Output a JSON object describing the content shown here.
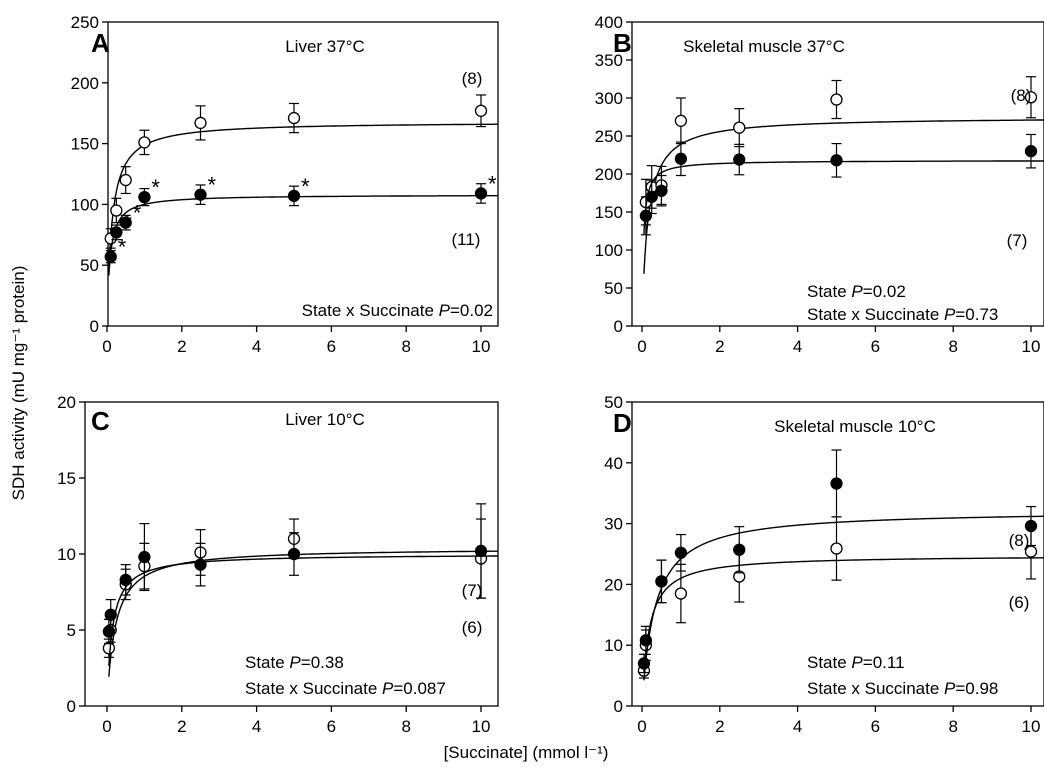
{
  "figure": {
    "ylabel": "SDH activity (mU mg⁻¹ protein)",
    "xlabel": "[Succinate] (mmol l⁻¹)"
  },
  "chart_data": [
    {
      "type": "scatter",
      "letter": "A",
      "title": "Liver 37°C",
      "xlim": [
        0,
        10
      ],
      "ylim": [
        0,
        250
      ],
      "xticks": [
        0,
        2,
        4,
        6,
        8,
        10
      ],
      "yticks": [
        0,
        50,
        100,
        150,
        200,
        250
      ],
      "series": [
        {
          "marker": "open",
          "color": "#000000",
          "x": [
            0.1,
            0.25,
            0.5,
            1,
            2.5,
            5,
            10
          ],
          "y": [
            72,
            95,
            120,
            151,
            167,
            171,
            177
          ],
          "err": [
            8,
            10,
            11,
            10,
            14,
            12,
            13
          ],
          "fit": {
            "vmax": 168,
            "km": 0.13
          },
          "n_label": "(8)"
        },
        {
          "marker": "filled",
          "color": "#000000",
          "x": [
            0.1,
            0.25,
            0.5,
            1,
            2.5,
            5,
            10
          ],
          "y": [
            57,
            77,
            85,
            106,
            108,
            107,
            109
          ],
          "err": [
            5,
            6,
            6,
            7,
            8,
            8,
            8
          ],
          "fit": {
            "vmax": 108,
            "km": 0.08
          },
          "n_label": "(11)",
          "stars": [
            "*",
            "*",
            "*",
            "*",
            "*",
            "*",
            "*"
          ]
        }
      ],
      "annotations": [
        {
          "parts": [
            "State x Succinate ",
            "P",
            "=0.02"
          ]
        }
      ]
    },
    {
      "type": "scatter",
      "letter": "B",
      "title": "Skeletal muscle 37°C",
      "xlim": [
        0,
        10
      ],
      "ylim": [
        0,
        400
      ],
      "xticks": [
        0,
        2,
        4,
        6,
        8,
        10
      ],
      "yticks": [
        0,
        50,
        100,
        150,
        200,
        250,
        300,
        350,
        400
      ],
      "series": [
        {
          "marker": "open",
          "color": "#000000",
          "x": [
            0.1,
            0.25,
            0.5,
            1,
            2.5,
            5,
            10
          ],
          "y": [
            163,
            183,
            185,
            270,
            261,
            298,
            301
          ],
          "err": [
            30,
            28,
            25,
            30,
            25,
            25,
            27
          ],
          "fit": {
            "vmax": 275,
            "km": 0.15
          },
          "n_label": "(8)"
        },
        {
          "marker": "filled",
          "color": "#000000",
          "x": [
            0.1,
            0.25,
            0.5,
            1,
            2.5,
            5,
            10
          ],
          "y": [
            145,
            170,
            178,
            220,
            219,
            218,
            230
          ],
          "err": [
            25,
            22,
            20,
            22,
            20,
            22,
            22
          ],
          "fit": {
            "vmax": 218,
            "km": 0.04
          },
          "n_label": "(7)"
        }
      ],
      "annotations": [
        {
          "parts": [
            "State ",
            "P",
            "=0.02"
          ]
        },
        {
          "parts": [
            "State x Succinate ",
            "P",
            "=0.73"
          ]
        }
      ]
    },
    {
      "type": "scatter",
      "letter": "C",
      "title": "Liver 10°C",
      "xlim": [
        0,
        10
      ],
      "ylim": [
        0,
        20
      ],
      "xticks": [
        0,
        2,
        4,
        6,
        8,
        10
      ],
      "yticks": [
        0,
        5,
        10,
        15,
        20
      ],
      "series": [
        {
          "marker": "open",
          "color": "#000000",
          "x": [
            0.05,
            0.1,
            0.5,
            1,
            2.5,
            5,
            10
          ],
          "y": [
            3.8,
            5.0,
            8.0,
            9.2,
            10.1,
            11.0,
            9.7
          ],
          "err": [
            0.6,
            0.8,
            1.0,
            1.5,
            1.5,
            1.3,
            2.6
          ],
          "fit": {
            "vmax": 10.4,
            "km": 0.22
          },
          "n_label": "(7)"
        },
        {
          "marker": "filled",
          "color": "#000000",
          "x": [
            0.05,
            0.1,
            0.5,
            1,
            2.5,
            5,
            10
          ],
          "y": [
            4.9,
            6.0,
            8.3,
            9.8,
            9.3,
            10.0,
            10.2
          ],
          "err": [
            0.8,
            1.0,
            1.0,
            2.2,
            1.4,
            1.4,
            3.1
          ],
          "fit": {
            "vmax": 10.0,
            "km": 0.14
          },
          "n_label": "(6)"
        }
      ],
      "annotations": [
        {
          "parts": [
            "State ",
            "P",
            "=0.38"
          ]
        },
        {
          "parts": [
            "State x Succinate ",
            "P",
            "=0.087"
          ]
        }
      ]
    },
    {
      "type": "scatter",
      "letter": "D",
      "title": "Skeletal muscle 10°C",
      "xlim": [
        0,
        10
      ],
      "ylim": [
        0,
        50
      ],
      "xticks": [
        0,
        2,
        4,
        6,
        8,
        10
      ],
      "yticks": [
        0,
        10,
        20,
        30,
        40,
        50
      ],
      "series": [
        {
          "marker": "open",
          "color": "#000000",
          "x": [
            0.05,
            0.1,
            0.5,
            1,
            2.5,
            5,
            10
          ],
          "y": [
            5.8,
            10.0,
            20.5,
            18.5,
            21.3,
            25.9,
            25.4
          ],
          "err": [
            1.2,
            2.5,
            3.5,
            4.8,
            4.2,
            5.2,
            4.5
          ],
          "fit": {
            "vmax": 24.8,
            "km": 0.18
          },
          "n_label": "(6)"
        },
        {
          "marker": "filled",
          "color": "#000000",
          "x": [
            0.05,
            0.1,
            0.5,
            1,
            2.5,
            5,
            10
          ],
          "y": [
            7.0,
            10.8,
            20.5,
            25.2,
            25.7,
            36.6,
            29.6
          ],
          "err": [
            1.5,
            2.3,
            3.5,
            3.0,
            3.8,
            5.5,
            3.2
          ],
          "fit": {
            "vmax": 32.2,
            "km": 0.33
          },
          "n_label": "(8)"
        }
      ],
      "annotations": [
        {
          "parts": [
            "State ",
            "P",
            "=0.11"
          ]
        },
        {
          "parts": [
            "State x Succinate ",
            "P",
            "=0.98"
          ]
        }
      ]
    }
  ]
}
